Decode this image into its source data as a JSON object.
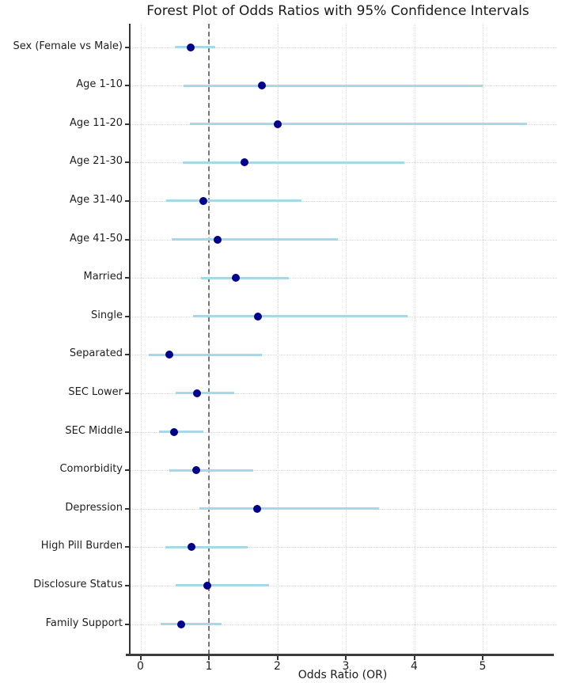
{
  "chart_data": {
    "type": "scatter",
    "subtype": "forest-plot",
    "title": "Forest Plot of Odds Ratios with 95% Confidence Intervals",
    "xlabel": "Odds Ratio (OR)",
    "ylabel": "",
    "x_ticks": [
      0,
      1,
      2,
      3,
      4,
      5
    ],
    "xlim": [
      -0.16,
      6.1
    ],
    "reference_line": 1,
    "grid": true,
    "legend_position": "none",
    "colors": {
      "point": "#00008b",
      "ci_line": "#a6d8ea",
      "reference_line": "#777777",
      "gridline": "#d9d9d9",
      "axis": "#333333"
    },
    "rows": [
      {
        "label": "Sex (Female vs Male)",
        "or": 0.73,
        "ci_low": 0.5,
        "ci_high": 1.09
      },
      {
        "label": "Age 1-10",
        "or": 1.77,
        "ci_low": 0.63,
        "ci_high": 5.0
      },
      {
        "label": "Age 11-20",
        "or": 2.0,
        "ci_low": 0.72,
        "ci_high": 5.65
      },
      {
        "label": "Age 21-30",
        "or": 1.52,
        "ci_low": 0.62,
        "ci_high": 3.85
      },
      {
        "label": "Age 31-40",
        "or": 0.92,
        "ci_low": 0.38,
        "ci_high": 2.35
      },
      {
        "label": "Age 41-50",
        "or": 1.13,
        "ci_low": 0.46,
        "ci_high": 2.88
      },
      {
        "label": "Married",
        "or": 1.39,
        "ci_low": 0.89,
        "ci_high": 2.17
      },
      {
        "label": "Single",
        "or": 1.72,
        "ci_low": 0.77,
        "ci_high": 3.9
      },
      {
        "label": "Separated",
        "or": 0.42,
        "ci_low": 0.12,
        "ci_high": 1.77
      },
      {
        "label": "SEC Lower",
        "or": 0.83,
        "ci_low": 0.51,
        "ci_high": 1.37
      },
      {
        "label": "SEC Middle",
        "or": 0.49,
        "ci_low": 0.27,
        "ci_high": 0.92
      },
      {
        "label": "Comorbidity",
        "or": 0.82,
        "ci_low": 0.42,
        "ci_high": 1.65
      },
      {
        "label": "Depression",
        "or": 1.7,
        "ci_low": 0.86,
        "ci_high": 3.48
      },
      {
        "label": "High Pill Burden",
        "or": 0.74,
        "ci_low": 0.36,
        "ci_high": 1.57
      },
      {
        "label": "Disclosure Status",
        "or": 0.98,
        "ci_low": 0.52,
        "ci_high": 1.88
      },
      {
        "label": "Family Support",
        "or": 0.6,
        "ci_low": 0.3,
        "ci_high": 1.19
      }
    ]
  }
}
